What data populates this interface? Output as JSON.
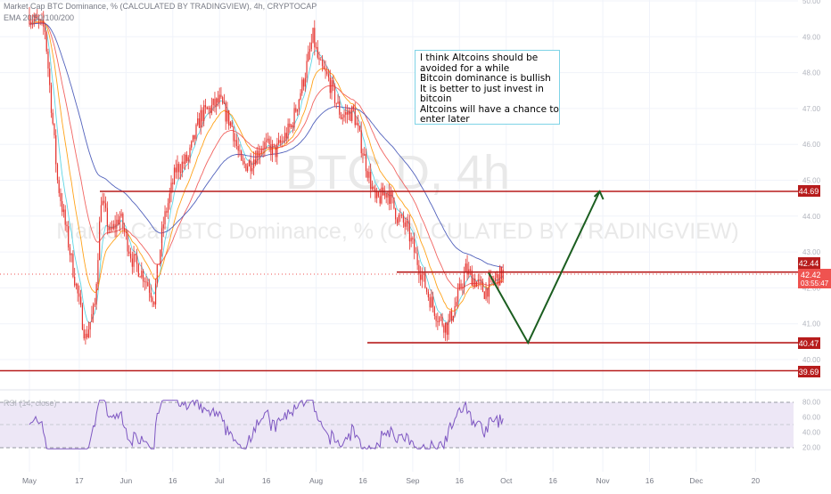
{
  "header": {
    "title_line": "Market Cap BTC Dominance, % (CALCULATED BY TRADINGVIEW), 4h, CRYPTOCAP",
    "ema_line": "EMA 20/50/100/200"
  },
  "watermark": {
    "symbol": "BTC.D, 4h",
    "description": "Market Cap BTC Dominance, % (CALCULATED BY TRADINGVIEW)"
  },
  "note": {
    "lines": [
      "I think Altcoins should be",
      "avoided for a while",
      "Bitcoin dominance is bullish",
      "It is better to just invest in",
      "bitcoin",
      "Altcoins will have a chance to",
      "enter later"
    ]
  },
  "rsi_label": "RSI (14, close)",
  "price_labels": {
    "level_high": "44.69",
    "level_mid": "42.44",
    "current_price": "42.42",
    "countdown": "03:55:47",
    "level_low": "40.47",
    "level_bottom": "39.69"
  },
  "colors": {
    "candle": "#e5322d",
    "level_line": "#b71c1c",
    "projection": "#1b5e20",
    "ema20": "#4dd0e1",
    "ema50": "#ff9800",
    "ema100": "#ef5350",
    "ema200": "#3f51b5",
    "rsi_line": "#7e57c2",
    "rsi_band": "#ede7f6"
  },
  "chart_data": {
    "type": "candlestick",
    "symbol": "BTC.D",
    "interval": "4h",
    "y_axis_ticks": [
      "50.00",
      "49.00",
      "48.00",
      "47.00",
      "46.00",
      "45.00",
      "44.00",
      "43.00",
      "42.00",
      "41.00",
      "40.00"
    ],
    "x_axis_ticks": [
      "May",
      "17",
      "Jun",
      "16",
      "Jul",
      "16",
      "Aug",
      "16",
      "Sep",
      "16",
      "Oct",
      "16",
      "Nov",
      "16",
      "Dec",
      "20"
    ],
    "ylim": [
      39.6,
      50.2
    ],
    "horizontal_levels": [
      44.69,
      42.44,
      40.47,
      39.69
    ],
    "current_price": 42.42,
    "price_path": [
      {
        "x": "May 1",
        "y": 49.6
      },
      {
        "x": "May 6",
        "y": 49.2
      },
      {
        "x": "May 10",
        "y": 45.0
      },
      {
        "x": "May 14",
        "y": 43.0
      },
      {
        "x": "May 19",
        "y": 40.6
      },
      {
        "x": "May 22",
        "y": 41.5
      },
      {
        "x": "May 24",
        "y": 44.5
      },
      {
        "x": "May 27",
        "y": 43.5
      },
      {
        "x": "May 30",
        "y": 44.0
      },
      {
        "x": "Jun 3",
        "y": 42.8
      },
      {
        "x": "Jun 7",
        "y": 42.3
      },
      {
        "x": "Jun 10",
        "y": 41.7
      },
      {
        "x": "Jun 13",
        "y": 43.8
      },
      {
        "x": "Jun 17",
        "y": 45.3
      },
      {
        "x": "Jun 21",
        "y": 45.6
      },
      {
        "x": "Jun 25",
        "y": 46.8
      },
      {
        "x": "Jul 1",
        "y": 47.2
      },
      {
        "x": "Jul 5",
        "y": 46.5
      },
      {
        "x": "Jul 8",
        "y": 45.4
      },
      {
        "x": "Jul 11",
        "y": 45.5
      },
      {
        "x": "Jul 15",
        "y": 46.0
      },
      {
        "x": "Jul 19",
        "y": 45.8
      },
      {
        "x": "Jul 24",
        "y": 46.5
      },
      {
        "x": "Jul 28",
        "y": 47.8
      },
      {
        "x": "Jul 31",
        "y": 49.0
      },
      {
        "x": "Aug 2",
        "y": 48.2
      },
      {
        "x": "Aug 5",
        "y": 47.8
      },
      {
        "x": "Aug 9",
        "y": 46.8
      },
      {
        "x": "Aug 13",
        "y": 46.9
      },
      {
        "x": "Aug 16",
        "y": 45.8
      },
      {
        "x": "Aug 20",
        "y": 44.4
      },
      {
        "x": "Aug 24",
        "y": 44.7
      },
      {
        "x": "Aug 27",
        "y": 44.0
      },
      {
        "x": "Aug 30",
        "y": 43.7
      },
      {
        "x": "Sep 3",
        "y": 42.6
      },
      {
        "x": "Sep 6",
        "y": 41.8
      },
      {
        "x": "Sep 9",
        "y": 41.2
      },
      {
        "x": "Sep 12",
        "y": 40.9
      },
      {
        "x": "Sep 15",
        "y": 41.6
      },
      {
        "x": "Sep 18",
        "y": 42.5
      },
      {
        "x": "Sep 21",
        "y": 42.2
      },
      {
        "x": "Sep 24",
        "y": 41.9
      },
      {
        "x": "Sep 27",
        "y": 42.2
      },
      {
        "x": "Sep 30",
        "y": 42.42
      }
    ],
    "projection": [
      {
        "x": "Sep 30",
        "y": 42.42
      },
      {
        "x": "Oct 8",
        "y": 40.47
      },
      {
        "x": "Oct 31",
        "y": 44.69
      }
    ],
    "rsi": {
      "label": "RSI (14, close)",
      "y_axis_ticks": [
        "80.00",
        "60.00",
        "40.00",
        "20.00"
      ],
      "band": [
        30,
        70
      ],
      "ylim": [
        17,
        82
      ]
    }
  }
}
